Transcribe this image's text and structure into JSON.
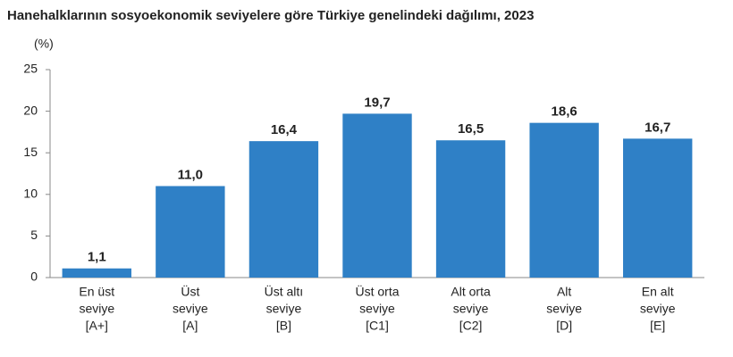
{
  "chart_data": {
    "type": "bar",
    "title": "Hanehalklarının sosyoekonomik seviyelere göre Türkiye genelindeki dağılımı, 2023",
    "y_label": "(%)",
    "categories": [
      [
        "En üst",
        "seviye",
        "[A+]"
      ],
      [
        "Üst",
        "seviye",
        "[A]"
      ],
      [
        "Üst altı",
        "seviye",
        "[B]"
      ],
      [
        "Üst orta",
        "seviye",
        "[C1]"
      ],
      [
        "Alt orta",
        "seviye",
        "[C2]"
      ],
      [
        "Alt",
        "seviye",
        "[D]"
      ],
      [
        "En alt",
        "seviye",
        "[E]"
      ]
    ],
    "values": [
      1.1,
      11.0,
      16.4,
      19.7,
      16.5,
      18.6,
      16.7
    ],
    "value_labels": [
      "1,1",
      "11,0",
      "16,4",
      "19,7",
      "16,5",
      "18,6",
      "16,7"
    ],
    "color": "#2f80c6",
    "ylim": [
      0,
      25
    ],
    "yticks": [
      0,
      5,
      10,
      15,
      20,
      25
    ],
    "grid": false
  }
}
